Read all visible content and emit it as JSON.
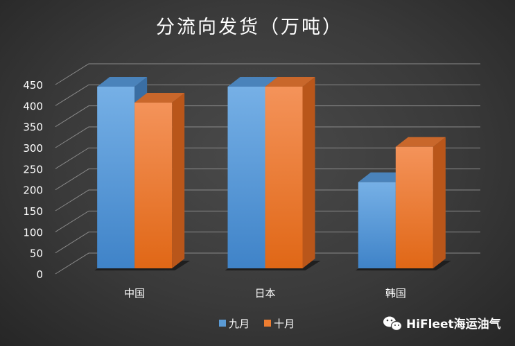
{
  "colors": {
    "series": [
      "#5b9bd5",
      "#ed7d31"
    ],
    "grid": "#8a8a8a",
    "text": "#ffffff"
  },
  "chart_data": {
    "type": "bar",
    "title": "分流向发货（万吨）",
    "categories": [
      "中国",
      "日本",
      "韩国"
    ],
    "series": [
      {
        "name": "九月",
        "values": [
          455,
          455,
          228
        ]
      },
      {
        "name": "十月",
        "values": [
          417,
          455,
          312
        ]
      }
    ],
    "ylim": [
      0,
      450
    ],
    "yticks": [
      0,
      50,
      100,
      150,
      200,
      250,
      300,
      350,
      400,
      450
    ],
    "grid": true,
    "legend": "bottom",
    "three_d": true
  },
  "watermark": {
    "icon": "wechat-icon",
    "text": "HiFleet海运油气"
  }
}
